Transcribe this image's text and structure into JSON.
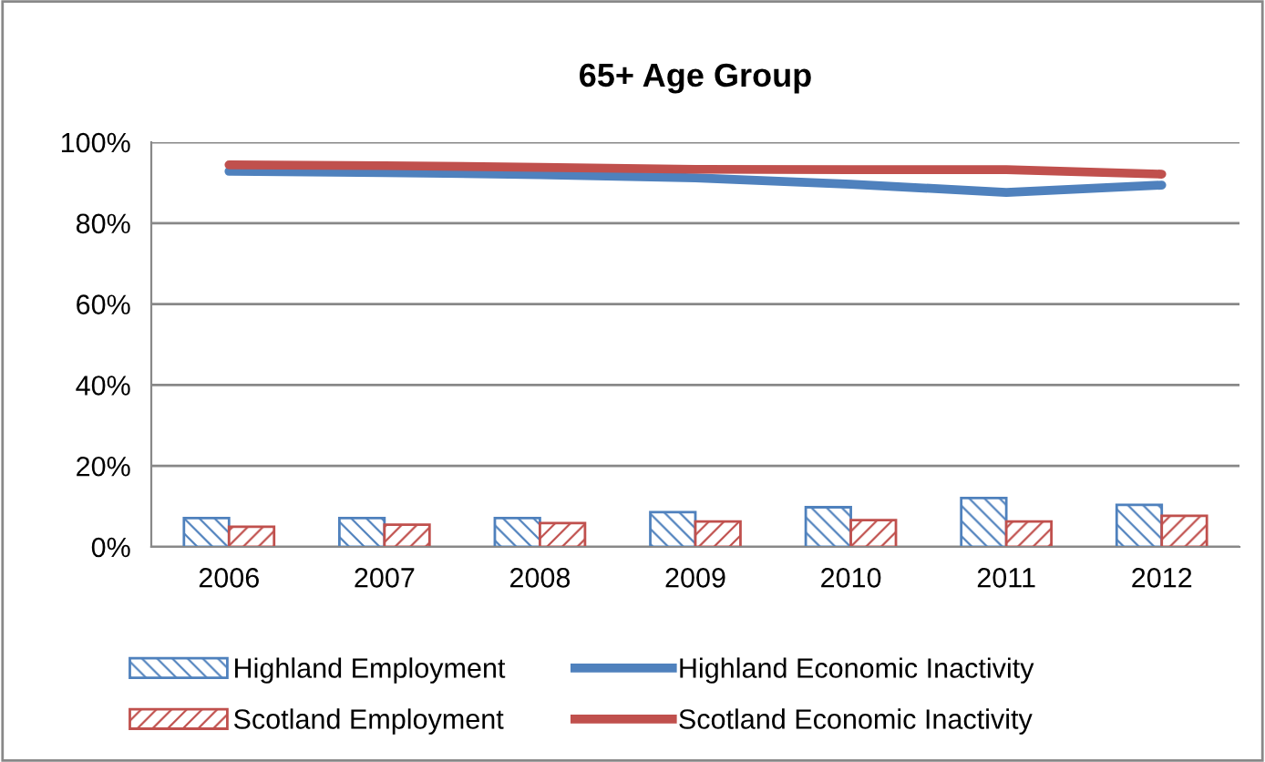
{
  "chart_data": {
    "type": "bar",
    "title": "65+ Age Group",
    "categories": [
      "2006",
      "2007",
      "2008",
      "2009",
      "2010",
      "2011",
      "2012"
    ],
    "series": [
      {
        "name": "Highland Employment",
        "color": "#4f81bd",
        "values": [
          7.1,
          7.1,
          7.1,
          8.6,
          9.8,
          12.1,
          10.4
        ]
      },
      {
        "name": "Scotland Employment",
        "color": "#c0504d",
        "values": [
          5.0,
          5.5,
          5.9,
          6.3,
          6.6,
          6.3,
          7.7
        ]
      },
      {
        "name": "Highland Economic Inactivity",
        "type": "line",
        "color": "#4f81bd",
        "values": [
          92.8,
          92.5,
          92.0,
          91.2,
          89.6,
          87.6,
          89.4
        ]
      },
      {
        "name": "Scotland Economic Inactivity",
        "type": "line",
        "color": "#c0504d",
        "values": [
          94.4,
          94.2,
          93.8,
          93.3,
          93.2,
          93.2,
          92.1
        ]
      }
    ],
    "ylim": [
      0,
      100
    ],
    "yticks": [
      {
        "value": 0,
        "label": "0%"
      },
      {
        "value": 20,
        "label": "20%"
      },
      {
        "value": 40,
        "label": "40%"
      },
      {
        "value": 60,
        "label": "60%"
      },
      {
        "value": 80,
        "label": "80%"
      },
      {
        "value": 100,
        "label": "100%"
      }
    ],
    "grid": "y",
    "legend": "bottom",
    "marker": "none",
    "line_style": "solid"
  }
}
